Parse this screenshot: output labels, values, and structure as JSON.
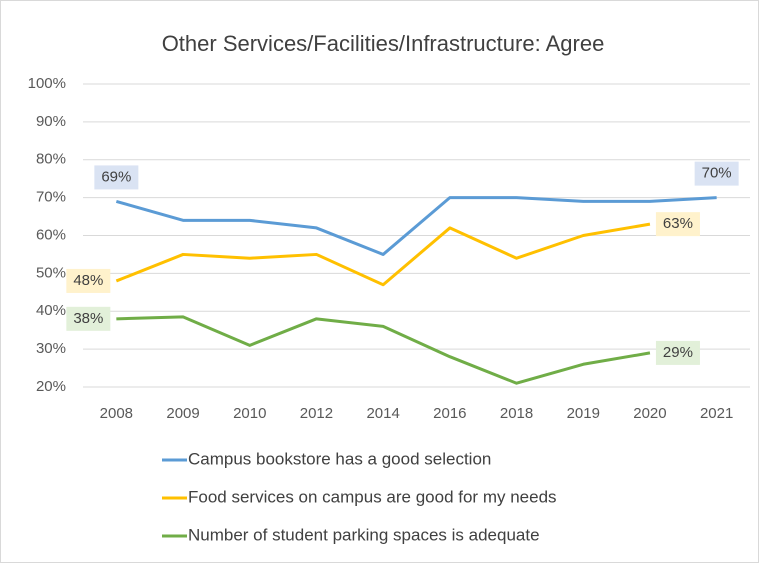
{
  "chart_data": {
    "type": "line",
    "title": "Other Services/Facilities/Infrastructure:  Agree",
    "categories": [
      "2008",
      "2009",
      "2010",
      "2012",
      "2014",
      "2016",
      "2018",
      "2019",
      "2020",
      "2021"
    ],
    "series": [
      {
        "name": "Campus bookstore has a good selection",
        "color": "#5b9bd5",
        "label_bg": "#dae3f3",
        "values": [
          69,
          64,
          64,
          62,
          55,
          70,
          70,
          69,
          69,
          70
        ],
        "value_labels": [
          "69%",
          null,
          null,
          null,
          null,
          null,
          null,
          null,
          null,
          "70%"
        ]
      },
      {
        "name": "Food services on campus are good for my needs",
        "color": "#ffc000",
        "label_bg": "#fff2cc",
        "values": [
          48,
          55,
          54,
          55,
          47,
          62,
          54,
          60,
          63,
          null
        ],
        "value_labels": [
          "48%",
          null,
          null,
          null,
          null,
          null,
          null,
          null,
          "63%",
          null
        ]
      },
      {
        "name": "Number of student parking spaces is adequate",
        "color": "#70ad47",
        "label_bg": "#e2f0d9",
        "values": [
          38,
          38.5,
          31,
          38,
          36,
          28,
          21,
          26,
          29,
          null
        ],
        "value_labels": [
          "38%",
          null,
          null,
          null,
          null,
          null,
          null,
          null,
          "29%",
          null
        ]
      }
    ],
    "ylim": [
      20,
      100
    ],
    "yticks": [
      {
        "value": 20,
        "label": "20%"
      },
      {
        "value": 30,
        "label": "30%"
      },
      {
        "value": 40,
        "label": "40%"
      },
      {
        "value": 50,
        "label": "50%"
      },
      {
        "value": 60,
        "label": "60%"
      },
      {
        "value": 70,
        "label": "70%"
      },
      {
        "value": 80,
        "label": "80%"
      },
      {
        "value": 90,
        "label": "90%"
      },
      {
        "value": 100,
        "label": "100%"
      }
    ],
    "grid": true,
    "legend": "bottom"
  }
}
